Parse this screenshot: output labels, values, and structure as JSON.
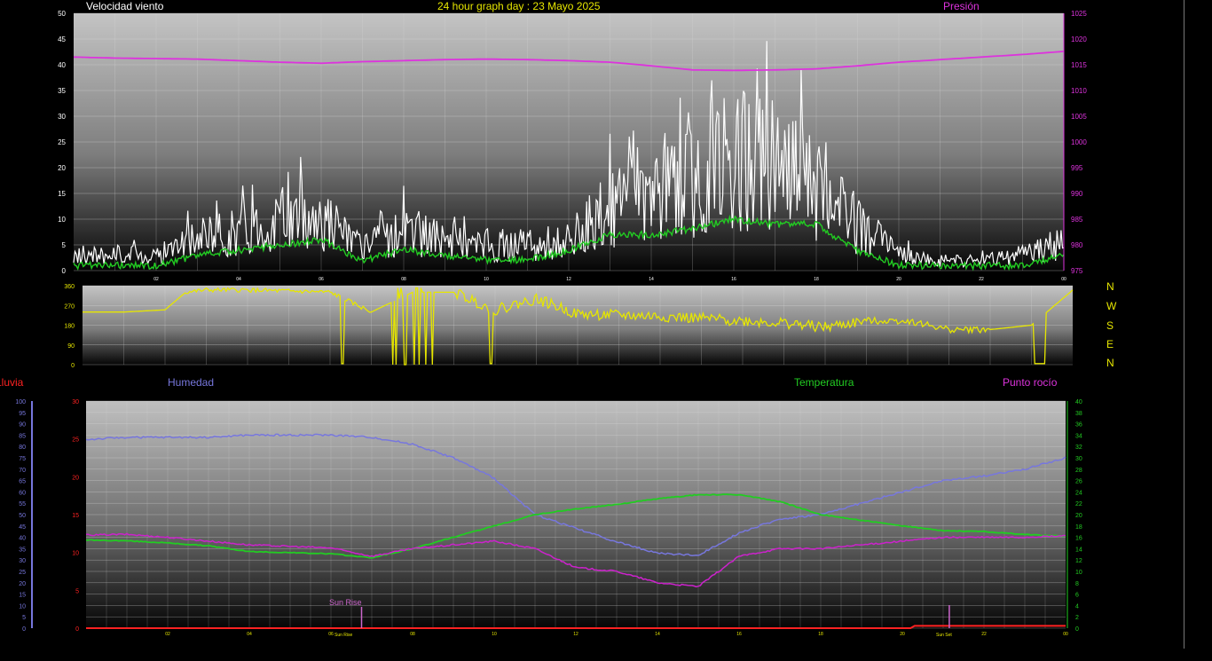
{
  "header": {
    "wind_label": "Velocidad viento",
    "title": "24 hour graph day : 23 Mayo 2025",
    "pressure_label": "Presión"
  },
  "colors": {
    "wind_gust": "#ffffff",
    "wind_avg": "#22cc22",
    "pressure": "#dd33dd",
    "direction": "#e6e600",
    "humidity": "#7777dd",
    "temperature": "#22cc22",
    "dewpoint": "#cc22cc",
    "rain": "#ff2222",
    "sun": "#cc66cc"
  },
  "compass_labels": [
    "N",
    "W",
    "S",
    "E",
    "N"
  ],
  "lower": {
    "rain_label": "Lluvia",
    "humidity_label": "Humedad",
    "temperature_label": "Temperatura",
    "dewpoint_label": "Punto rocío",
    "sun_rise_label": "Sun Rise",
    "sun_set_label": "Sun Set"
  },
  "chart_data": [
    {
      "type": "line",
      "name": "wind_pressure",
      "x_ticks": [
        "02",
        "04",
        "06",
        "08",
        "10",
        "12",
        "14",
        "16",
        "18",
        "20",
        "22",
        "00"
      ],
      "ylim": [
        0,
        50
      ],
      "y_ticks": [
        0,
        5,
        10,
        15,
        20,
        25,
        30,
        35,
        40,
        45,
        50
      ],
      "y2lim": [
        975,
        1025
      ],
      "y2_ticks": [
        975,
        980,
        985,
        990,
        995,
        1000,
        1005,
        1010,
        1015,
        1020,
        1025
      ],
      "grid": true,
      "series": [
        {
          "name": "Velocidad viento",
          "style": "gust",
          "hours": [
            0,
            1,
            2,
            3,
            4,
            5,
            6,
            7,
            8,
            9,
            10,
            11,
            12,
            13,
            14,
            15,
            16,
            17,
            18,
            19,
            20,
            21,
            22,
            23,
            24
          ],
          "values": [
            3,
            3,
            3,
            6,
            8,
            10,
            11,
            4,
            8,
            6,
            5,
            5,
            6,
            12,
            16,
            18,
            22,
            20,
            16,
            9,
            3,
            2,
            2,
            3,
            6
          ]
        },
        {
          "name": "Velocidad viento (media)",
          "style": "avg",
          "hours": [
            0,
            1,
            2,
            3,
            4,
            5,
            6,
            7,
            8,
            9,
            10,
            11,
            12,
            13,
            14,
            15,
            16,
            17,
            18,
            19,
            20,
            21,
            22,
            23,
            24
          ],
          "values": [
            1,
            1,
            1,
            3,
            4,
            5,
            6,
            2,
            4,
            3,
            2,
            2,
            4,
            7,
            7,
            8,
            10,
            9,
            9,
            4,
            1,
            1,
            1,
            1,
            3
          ]
        },
        {
          "name": "Presión",
          "hours": [
            0,
            1,
            2,
            3,
            4,
            5,
            6,
            7,
            8,
            9,
            10,
            11,
            12,
            13,
            14,
            15,
            16,
            17,
            18,
            19,
            20,
            21,
            22,
            23,
            24
          ],
          "values": [
            1016.5,
            1016.3,
            1016.2,
            1016.1,
            1015.8,
            1015.5,
            1015.3,
            1015.6,
            1015.8,
            1016,
            1016.1,
            1016,
            1015.8,
            1015.5,
            1014.8,
            1014,
            1013.9,
            1014,
            1014.2,
            1014.8,
            1015.5,
            1016,
            1016.5,
            1017,
            1017.6
          ]
        }
      ]
    },
    {
      "type": "line",
      "name": "wind_direction",
      "ylim": [
        0,
        360
      ],
      "y_ticks": [
        0,
        90,
        180,
        270,
        360
      ],
      "grid": true,
      "series": [
        {
          "name": "Dirección viento",
          "hours": [
            0,
            1,
            2,
            2.5,
            3,
            4,
            5,
            6,
            7,
            8,
            9,
            10,
            11,
            12,
            13,
            14,
            15,
            16,
            17,
            18,
            19,
            20,
            21,
            22,
            23,
            24
          ],
          "values": [
            240,
            240,
            250,
            330,
            340,
            340,
            335,
            330,
            240,
            330,
            330,
            250,
            300,
            230,
            225,
            220,
            210,
            200,
            190,
            170,
            200,
            200,
            160,
            160,
            180,
            340
          ]
        }
      ]
    },
    {
      "type": "line",
      "name": "temp_humidity",
      "x_ticks": [
        "02",
        "04",
        "06",
        "08",
        "10",
        "12",
        "14",
        "16",
        "18",
        "20",
        "22",
        "00"
      ],
      "ylim": [
        0,
        30
      ],
      "y_ticks": [
        0,
        5,
        10,
        15,
        20,
        25,
        30
      ],
      "y_humidity_lim": [
        0,
        100
      ],
      "y_humidity_ticks": [
        0,
        5,
        10,
        15,
        20,
        25,
        30,
        35,
        40,
        45,
        50,
        55,
        60,
        65,
        70,
        75,
        80,
        85,
        90,
        95,
        100
      ],
      "y_temperature_lim": [
        0,
        40
      ],
      "y_temperature_ticks": [
        0,
        2,
        4,
        6,
        8,
        10,
        12,
        14,
        16,
        18,
        20,
        22,
        24,
        26,
        28,
        30,
        32,
        34,
        36,
        38,
        40
      ],
      "grid": true,
      "series": [
        {
          "name": "Humedad",
          "hours": [
            0,
            1,
            2,
            3,
            4,
            5,
            6,
            7,
            8,
            9,
            10,
            11,
            12,
            13,
            14,
            15,
            16,
            17,
            18,
            19,
            20,
            21,
            22,
            23,
            24
          ],
          "values": [
            83,
            84,
            84,
            84,
            85,
            85,
            85,
            84,
            81,
            75,
            66,
            50,
            44,
            38,
            33,
            32,
            42,
            48,
            50,
            55,
            60,
            65,
            67,
            70,
            75
          ]
        },
        {
          "name": "Temperatura",
          "hours": [
            0,
            1,
            2,
            3,
            4,
            5,
            6,
            7,
            8,
            9,
            10,
            11,
            12,
            13,
            14,
            15,
            16,
            17,
            18,
            19,
            20,
            21,
            22,
            23,
            24
          ],
          "values": [
            15.5,
            15.4,
            15,
            14.5,
            13.5,
            13.3,
            13.1,
            12.4,
            14,
            16,
            18,
            20,
            21,
            21.8,
            22.8,
            23.5,
            23.5,
            22.3,
            20,
            19,
            18,
            17.2,
            17,
            16.5,
            16.2
          ]
        },
        {
          "name": "Punto rocío",
          "hours": [
            0,
            1,
            2,
            3,
            4,
            5,
            6,
            7,
            8,
            9,
            10,
            11,
            12,
            13,
            14,
            15,
            16,
            17,
            18,
            19,
            20,
            21,
            22,
            23,
            24
          ],
          "values": [
            12.3,
            12.4,
            12,
            11.5,
            11,
            10.8,
            10.6,
            9.5,
            10.5,
            11,
            11.5,
            10.5,
            8,
            7.5,
            6,
            5.5,
            9.5,
            10.5,
            10.5,
            11,
            11.5,
            12,
            12,
            12,
            12.2
          ]
        },
        {
          "name": "Lluvia",
          "hours": [
            0,
            20.2,
            20.3,
            24
          ],
          "values": [
            0,
            0,
            0.3,
            0.3
          ]
        }
      ],
      "sun_rise_hour": 6.75,
      "sun_set_hour": 21.15
    }
  ]
}
